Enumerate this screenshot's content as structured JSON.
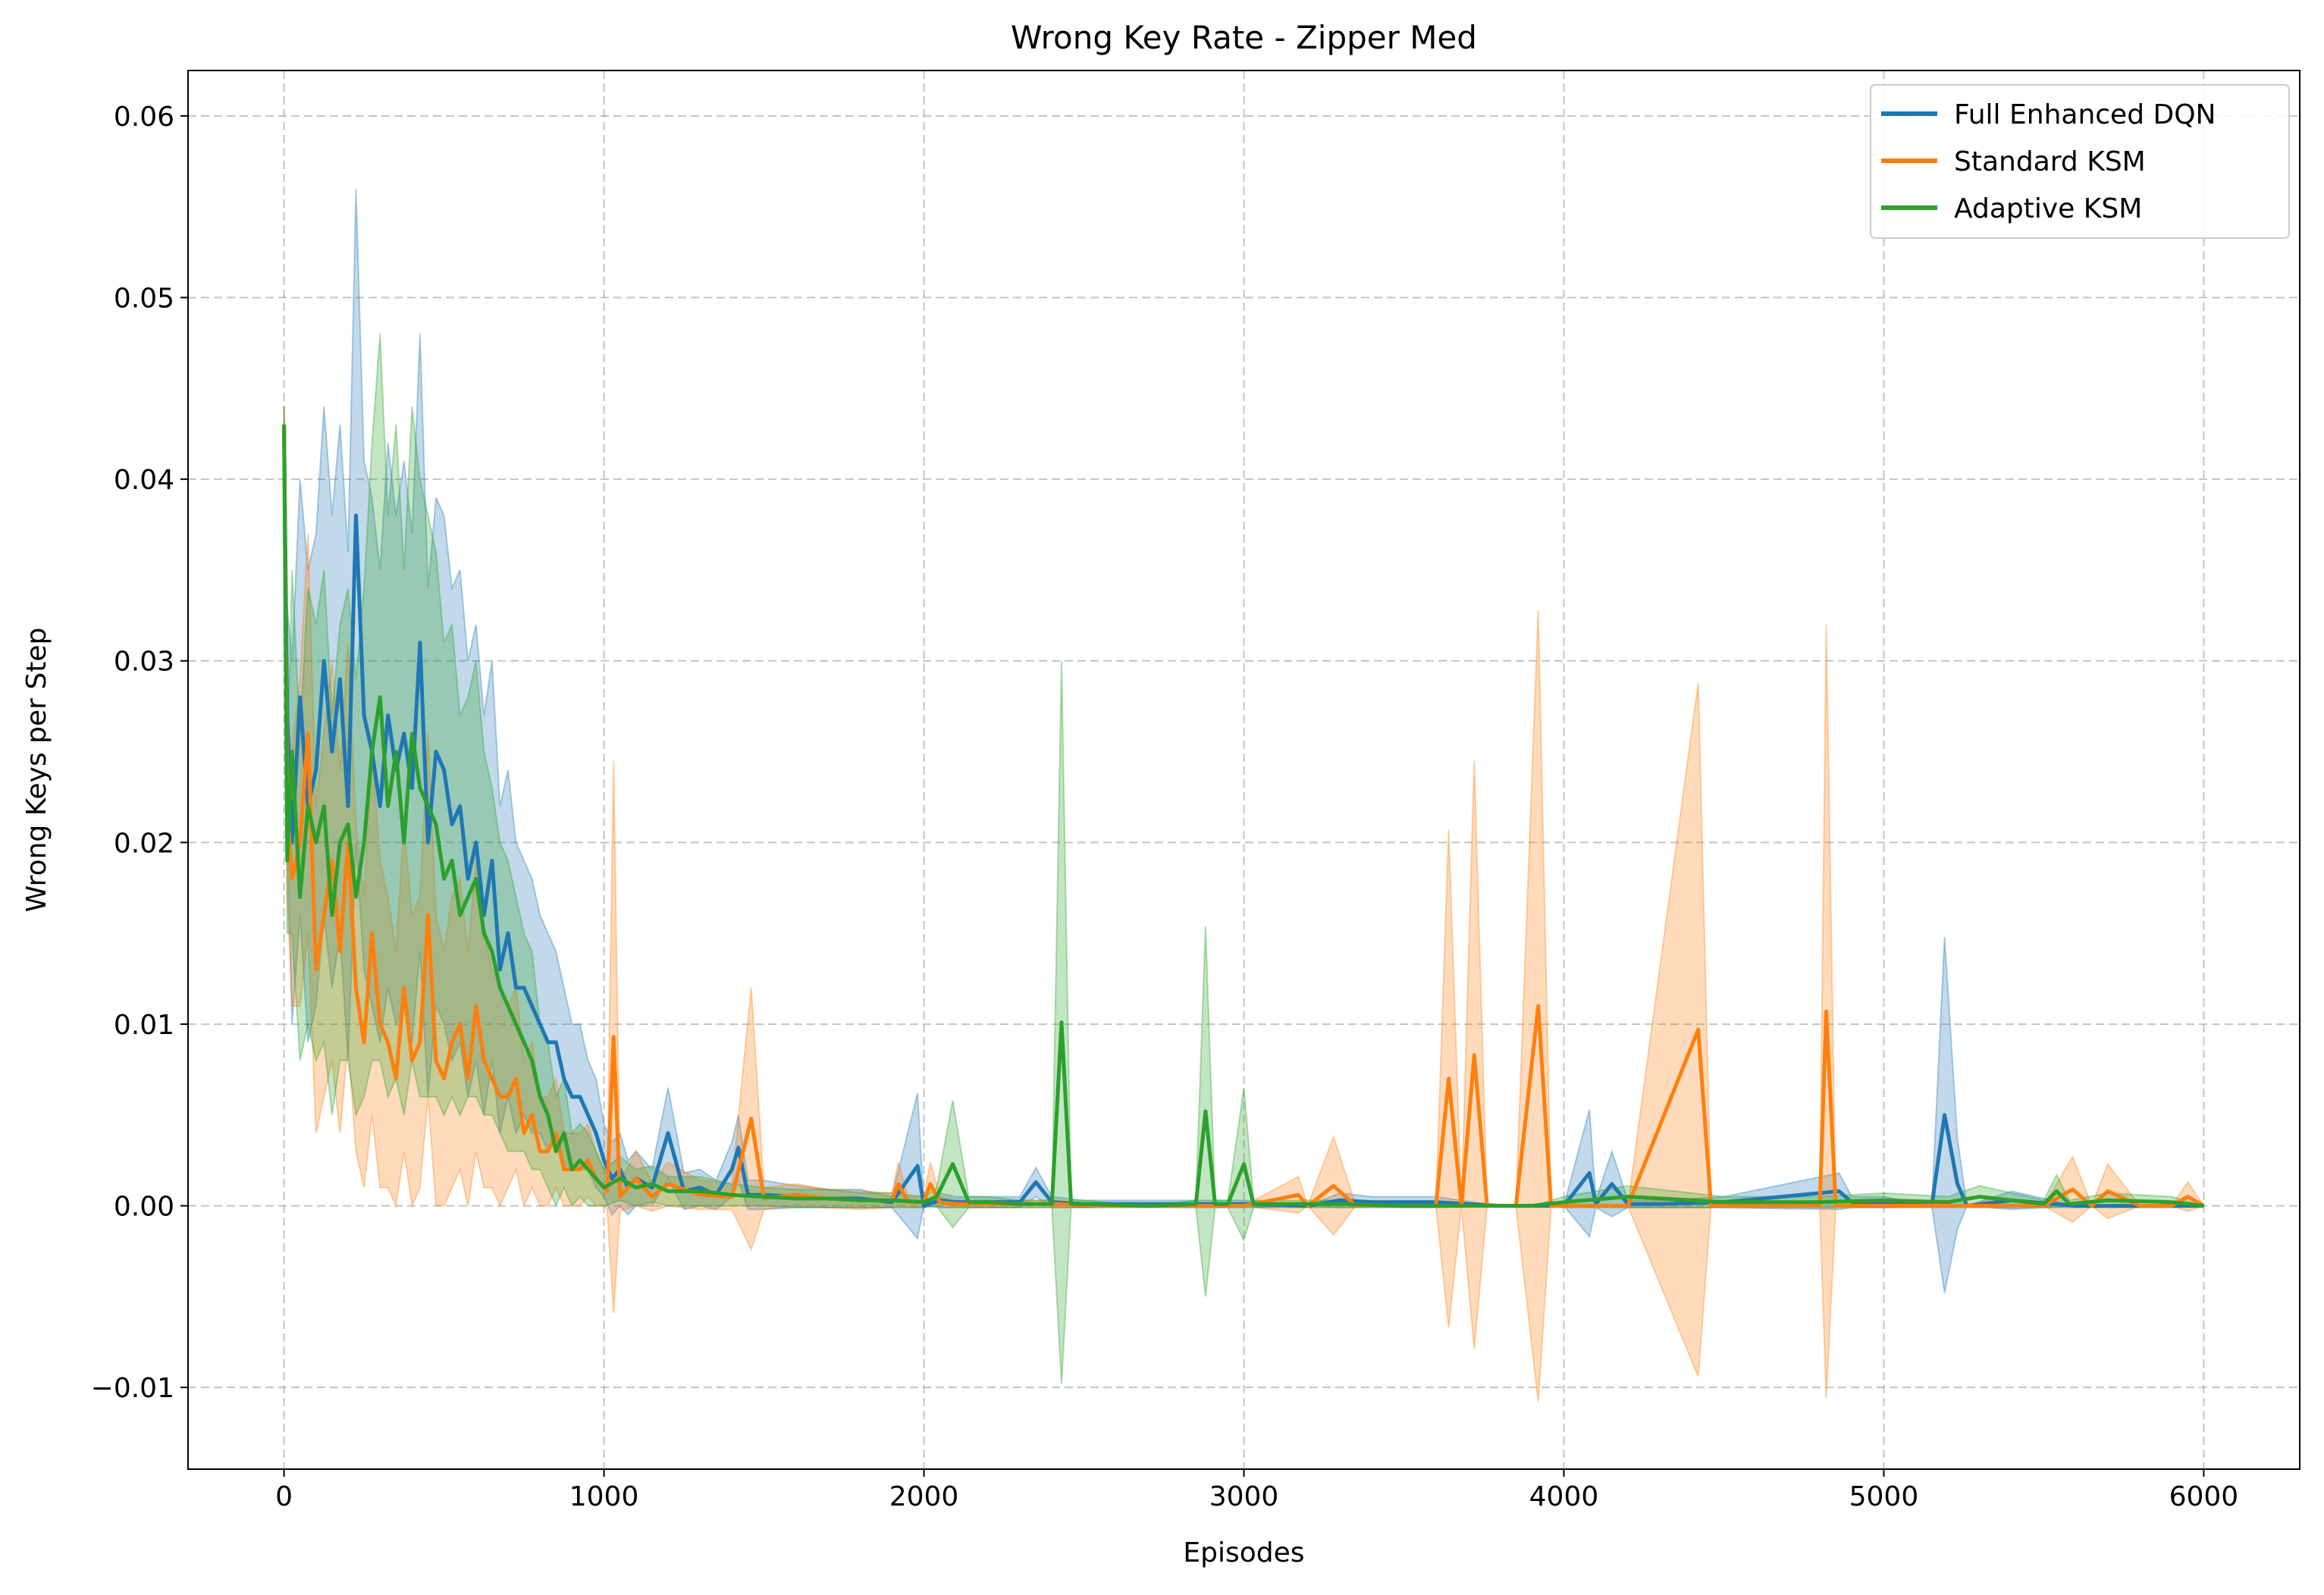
{
  "chart_data": {
    "type": "line",
    "title": "Wrong Key Rate - Zipper Med",
    "xlabel": "Episodes",
    "ylabel": "Wrong Keys per Step",
    "xlim": [
      -300,
      6300
    ],
    "ylim": [
      -0.0145,
      0.0625
    ],
    "x_ticks": [
      0,
      1000,
      2000,
      3000,
      4000,
      5000,
      6000
    ],
    "x_tick_labels": [
      "0",
      "1000",
      "2000",
      "3000",
      "4000",
      "5000",
      "6000"
    ],
    "y_ticks": [
      -0.01,
      0.0,
      0.01,
      0.02,
      0.03,
      0.04,
      0.05,
      0.06
    ],
    "y_tick_labels": [
      "−0.01",
      "0.00",
      "0.01",
      "0.02",
      "0.03",
      "0.04",
      "0.05",
      "0.06"
    ],
    "grid": true,
    "legend_position": "top-right",
    "shaded_band": "mean ± std",
    "series": [
      {
        "name": "Full Enhanced DQN",
        "color": "#1f77b4",
        "x": [
          0,
          10,
          25,
          50,
          75,
          100,
          125,
          150,
          175,
          200,
          225,
          250,
          275,
          300,
          325,
          350,
          375,
          400,
          425,
          450,
          475,
          500,
          525,
          550,
          575,
          600,
          625,
          650,
          675,
          700,
          725,
          750,
          775,
          800,
          825,
          850,
          875,
          900,
          925,
          950,
          975,
          1000,
          1025,
          1050,
          1075,
          1100,
          1150,
          1200,
          1250,
          1300,
          1350,
          1400,
          1420,
          1450,
          1500,
          1600,
          1700,
          1800,
          1900,
          1980,
          2000,
          2050,
          2100,
          2200,
          2300,
          2350,
          2400,
          2500,
          2600,
          2800,
          3000,
          3200,
          3300,
          3400,
          3600,
          3800,
          4000,
          4080,
          4100,
          4150,
          4200,
          4300,
          4500,
          4860,
          4900,
          5000,
          5150,
          5190,
          5230,
          5260,
          5400,
          5600,
          5800,
          6000
        ],
        "mean": [
          0.043,
          0.027,
          0.02,
          0.028,
          0.022,
          0.024,
          0.03,
          0.025,
          0.029,
          0.022,
          0.038,
          0.027,
          0.025,
          0.022,
          0.027,
          0.024,
          0.026,
          0.023,
          0.031,
          0.02,
          0.025,
          0.024,
          0.021,
          0.022,
          0.018,
          0.02,
          0.016,
          0.019,
          0.013,
          0.015,
          0.012,
          0.012,
          0.011,
          0.01,
          0.009,
          0.009,
          0.007,
          0.006,
          0.006,
          0.005,
          0.004,
          0.0025,
          0.0015,
          0.002,
          0.001,
          0.0015,
          0.001,
          0.004,
          0.0008,
          0.001,
          0.0006,
          0.002,
          0.0032,
          0.0006,
          0.0006,
          0.0005,
          0.0004,
          0.0004,
          0.0002,
          0.0022,
          0.0,
          0.0003,
          0.0002,
          0.0002,
          0.0002,
          0.0013,
          0.0002,
          0.0001,
          0.0001,
          0.0001,
          0.0001,
          0.0,
          0.0003,
          0.0002,
          0.0002,
          0.0,
          0.0,
          0.0018,
          0.0001,
          0.0012,
          0.0001,
          0.0001,
          0.0002,
          0.0008,
          0.0002,
          0.0002,
          0.0,
          0.005,
          0.0012,
          0.0,
          0.0003,
          0.0,
          0.0,
          0.0
        ],
        "std": [
          0.001,
          0.006,
          0.01,
          0.012,
          0.013,
          0.013,
          0.014,
          0.013,
          0.014,
          0.014,
          0.018,
          0.014,
          0.014,
          0.013,
          0.015,
          0.014,
          0.015,
          0.014,
          0.017,
          0.014,
          0.014,
          0.014,
          0.013,
          0.013,
          0.012,
          0.012,
          0.011,
          0.011,
          0.009,
          0.009,
          0.008,
          0.007,
          0.007,
          0.006,
          0.006,
          0.005,
          0.005,
          0.004,
          0.004,
          0.003,
          0.003,
          0.002,
          0.002,
          0.002,
          0.0015,
          0.0015,
          0.001,
          0.0025,
          0.001,
          0.001,
          0.0008,
          0.0015,
          0.0018,
          0.0008,
          0.0008,
          0.0006,
          0.0005,
          0.0005,
          0.0003,
          0.004,
          0.0,
          0.0004,
          0.0003,
          0.0003,
          0.0003,
          0.0008,
          0.0003,
          0.0002,
          0.0002,
          0.0002,
          0.0002,
          0.0,
          0.0004,
          0.0003,
          0.0003,
          0.0,
          0.0,
          0.0035,
          0.0002,
          0.0018,
          0.0002,
          0.0002,
          0.0003,
          0.001,
          0.0003,
          0.0003,
          0.0,
          0.0098,
          0.0025,
          0.0,
          0.0005,
          0.0,
          0.0,
          0.0
        ]
      },
      {
        "name": "Standard KSM",
        "color": "#ff7f0e",
        "x": [
          0,
          10,
          25,
          50,
          75,
          100,
          125,
          150,
          175,
          200,
          225,
          250,
          275,
          300,
          325,
          350,
          375,
          400,
          425,
          450,
          475,
          500,
          525,
          550,
          575,
          600,
          625,
          650,
          675,
          700,
          725,
          750,
          775,
          800,
          825,
          850,
          875,
          900,
          925,
          950,
          975,
          1000,
          1010,
          1030,
          1050,
          1100,
          1150,
          1200,
          1300,
          1400,
          1460,
          1500,
          1600,
          1700,
          1800,
          1900,
          1920,
          1950,
          2000,
          2020,
          2050,
          2100,
          2200,
          2400,
          2600,
          2800,
          3000,
          3170,
          3200,
          3280,
          3350,
          3500,
          3600,
          3640,
          3680,
          3720,
          3760,
          3850,
          3920,
          3960,
          4000,
          4200,
          4420,
          4460,
          4600,
          4800,
          4820,
          4850,
          4900,
          5000,
          5500,
          5590,
          5650,
          5700,
          5800,
          5900,
          5950,
          6000
        ],
        "mean": [
          0.043,
          0.022,
          0.018,
          0.02,
          0.026,
          0.013,
          0.016,
          0.019,
          0.014,
          0.02,
          0.012,
          0.009,
          0.015,
          0.01,
          0.009,
          0.007,
          0.012,
          0.008,
          0.009,
          0.016,
          0.008,
          0.007,
          0.009,
          0.01,
          0.007,
          0.011,
          0.008,
          0.007,
          0.006,
          0.006,
          0.007,
          0.004,
          0.005,
          0.003,
          0.003,
          0.004,
          0.002,
          0.002,
          0.002,
          0.0025,
          0.0015,
          0.001,
          0.0008,
          0.0093,
          0.0005,
          0.0015,
          0.0005,
          0.0012,
          0.0006,
          0.0005,
          0.0048,
          0.0004,
          0.0006,
          0.0004,
          0.0003,
          0.0003,
          0.0012,
          0.0002,
          0.0002,
          0.0012,
          0.0002,
          0.0001,
          0.0001,
          0.0001,
          0.0,
          0.0,
          0.0,
          0.0006,
          0.0,
          0.0011,
          0.0,
          0.0,
          0.0,
          0.007,
          0.0,
          0.0083,
          0.0,
          0.0,
          0.011,
          0.0,
          0.0,
          0.0,
          0.0097,
          0.0,
          0.0,
          0.0,
          0.0107,
          0.0,
          0.0,
          0.0,
          0.0,
          0.0009,
          0.0,
          0.0008,
          0.0,
          0.0,
          0.0005,
          0.0
        ],
        "std": [
          0.001,
          0.005,
          0.007,
          0.009,
          0.011,
          0.009,
          0.01,
          0.011,
          0.01,
          0.011,
          0.009,
          0.008,
          0.01,
          0.009,
          0.008,
          0.007,
          0.009,
          0.008,
          0.008,
          0.01,
          0.008,
          0.007,
          0.008,
          0.008,
          0.007,
          0.008,
          0.007,
          0.006,
          0.006,
          0.005,
          0.005,
          0.004,
          0.004,
          0.003,
          0.003,
          0.003,
          0.002,
          0.002,
          0.002,
          0.002,
          0.0015,
          0.001,
          0.001,
          0.0152,
          0.0008,
          0.0015,
          0.0008,
          0.0012,
          0.0008,
          0.0007,
          0.0072,
          0.0006,
          0.0006,
          0.0005,
          0.0005,
          0.0004,
          0.0012,
          0.0003,
          0.0003,
          0.0012,
          0.0003,
          0.0002,
          0.0002,
          0.0002,
          0.0,
          0.0,
          0.0,
          0.001,
          0.0,
          0.0027,
          0.0,
          0.0,
          0.0,
          0.0137,
          0.0,
          0.0162,
          0.0,
          0.0,
          0.0218,
          0.0,
          0.0,
          0.0,
          0.0191,
          0.0,
          0.0,
          0.0,
          0.0213,
          0.0,
          0.0,
          0.0,
          0.0,
          0.0018,
          0.0,
          0.0015,
          0.0,
          0.0,
          0.0008,
          0.0
        ]
      },
      {
        "name": "Adaptive KSM",
        "color": "#2ca02c",
        "x": [
          0,
          10,
          25,
          50,
          75,
          100,
          125,
          150,
          175,
          200,
          225,
          250,
          275,
          300,
          325,
          350,
          375,
          400,
          425,
          450,
          475,
          500,
          525,
          550,
          575,
          600,
          625,
          650,
          675,
          700,
          725,
          750,
          775,
          800,
          825,
          850,
          875,
          900,
          925,
          950,
          975,
          1000,
          1050,
          1100,
          1150,
          1200,
          1300,
          1400,
          1500,
          1600,
          1700,
          1800,
          1900,
          2000,
          2040,
          2090,
          2140,
          2200,
          2300,
          2400,
          2430,
          2460,
          2500,
          2700,
          2850,
          2880,
          2910,
          2950,
          3000,
          3030,
          3100,
          3300,
          3500,
          3700,
          3900,
          4000,
          4200,
          4500,
          4800,
          5000,
          5200,
          5300,
          5500,
          5540,
          5580,
          5700,
          5900,
          6000
        ],
        "mean": [
          0.043,
          0.019,
          0.025,
          0.017,
          0.022,
          0.02,
          0.022,
          0.016,
          0.02,
          0.021,
          0.017,
          0.02,
          0.025,
          0.028,
          0.022,
          0.025,
          0.02,
          0.026,
          0.023,
          0.022,
          0.021,
          0.018,
          0.019,
          0.016,
          0.017,
          0.018,
          0.015,
          0.014,
          0.012,
          0.011,
          0.01,
          0.009,
          0.008,
          0.006,
          0.005,
          0.003,
          0.004,
          0.002,
          0.0025,
          0.002,
          0.0015,
          0.001,
          0.0015,
          0.001,
          0.0012,
          0.0008,
          0.0008,
          0.0006,
          0.0005,
          0.0004,
          0.0004,
          0.0003,
          0.0003,
          0.0002,
          0.0005,
          0.0023,
          0.0002,
          0.0002,
          0.0001,
          0.0001,
          0.0101,
          0.0001,
          0.0001,
          0.0,
          0.0001,
          0.0052,
          0.0001,
          0.0001,
          0.0023,
          0.0001,
          0.0001,
          0.0001,
          0.0,
          0.0,
          0.0,
          0.0002,
          0.0005,
          0.0002,
          0.0002,
          0.0003,
          0.0002,
          0.0005,
          0.0001,
          0.0008,
          0.0001,
          0.0003,
          0.0002,
          0.0
        ],
        "std": [
          0.001,
          0.004,
          0.01,
          0.009,
          0.012,
          0.012,
          0.013,
          0.011,
          0.012,
          0.013,
          0.012,
          0.014,
          0.017,
          0.02,
          0.016,
          0.018,
          0.015,
          0.018,
          0.017,
          0.016,
          0.015,
          0.013,
          0.013,
          0.011,
          0.011,
          0.012,
          0.01,
          0.009,
          0.008,
          0.008,
          0.007,
          0.006,
          0.006,
          0.004,
          0.004,
          0.003,
          0.003,
          0.002,
          0.002,
          0.002,
          0.0015,
          0.001,
          0.0012,
          0.001,
          0.001,
          0.0008,
          0.0008,
          0.0006,
          0.0005,
          0.0005,
          0.0005,
          0.0004,
          0.0004,
          0.0003,
          0.0005,
          0.0035,
          0.0003,
          0.0003,
          0.0002,
          0.0002,
          0.0199,
          0.0002,
          0.0002,
          0.0,
          0.0002,
          0.0102,
          0.0002,
          0.0002,
          0.0042,
          0.0002,
          0.0002,
          0.0002,
          0.0,
          0.0,
          0.0,
          0.0003,
          0.0006,
          0.0003,
          0.0003,
          0.0004,
          0.0003,
          0.0006,
          0.0002,
          0.0009,
          0.0002,
          0.0004,
          0.0003,
          0.0
        ]
      }
    ]
  }
}
